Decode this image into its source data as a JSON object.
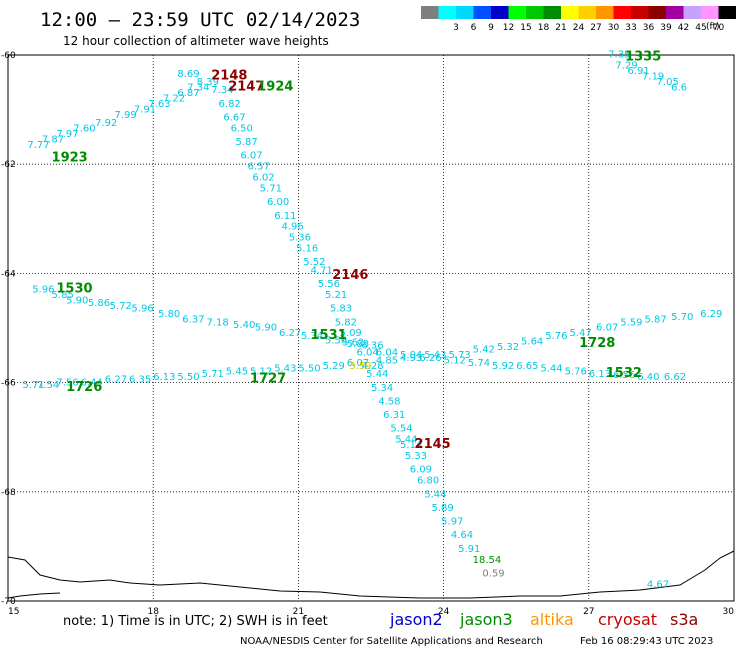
{
  "header": {
    "title": "12:00 – 23:59 UTC 02/14/2023",
    "subtitle": "12 hour collection of altimeter wave heights"
  },
  "legend": {
    "unit": "(ft)",
    "bins": [
      {
        "color": "#7f7f7f",
        "label": ""
      },
      {
        "color": "#00ffff",
        "label": "3"
      },
      {
        "color": "#00d8ff",
        "label": "6"
      },
      {
        "color": "#0050ff",
        "label": "9"
      },
      {
        "color": "#0000c8",
        "label": "12"
      },
      {
        "color": "#00ff00",
        "label": "15"
      },
      {
        "color": "#00c800",
        "label": "18"
      },
      {
        "color": "#008c00",
        "label": "21"
      },
      {
        "color": "#ffff00",
        "label": "24"
      },
      {
        "color": "#ffd000",
        "label": "27"
      },
      {
        "color": "#ff9600",
        "label": "30"
      },
      {
        "color": "#ff0000",
        "label": "33"
      },
      {
        "color": "#c80000",
        "label": "36"
      },
      {
        "color": "#8c0000",
        "label": "39"
      },
      {
        "color": "#a000a0",
        "label": "42"
      },
      {
        "color": "#c8a0ff",
        "label": "45"
      },
      {
        "color": "#ff96ff",
        "label": "70"
      },
      {
        "color": "#000000",
        "label": ""
      }
    ]
  },
  "map": {
    "lon_range": [
      15,
      30
    ],
    "lat_range": [
      -70,
      -60
    ],
    "lon_ticks": [
      "15",
      "18",
      "21",
      "24",
      "27",
      "30"
    ],
    "lat_ticks": [
      "-60",
      "-62",
      "-64",
      "-66",
      "-68",
      "-70"
    ],
    "colors": {
      "cyan": "#00c8e6",
      "green": "#008c00",
      "darkred": "#8c0000",
      "gray": "#7f7f7f",
      "yellow": "#c8c800"
    }
  },
  "tracks": [
    {
      "name": "track-a",
      "color": "cyan",
      "points": [
        {
          "lon": 15.4,
          "lat": -61.7,
          "v": "7.77"
        },
        {
          "lon": 15.7,
          "lat": -61.6,
          "v": "7.87"
        },
        {
          "lon": 16.0,
          "lat": -61.5,
          "v": "7.97"
        },
        {
          "lon": 16.35,
          "lat": -61.4,
          "v": "7.60"
        },
        {
          "lon": 16.8,
          "lat": -61.3,
          "v": "7.92"
        },
        {
          "lon": 17.2,
          "lat": -61.15,
          "v": "7.99"
        },
        {
          "lon": 17.6,
          "lat": -61.05,
          "v": "7.91"
        },
        {
          "lon": 17.9,
          "lat": -60.95,
          "v": "7.63"
        },
        {
          "lon": 18.2,
          "lat": -60.85,
          "v": "7.22"
        },
        {
          "lon": 18.5,
          "lat": -60.75,
          "v": "6.87"
        },
        {
          "lon": 18.7,
          "lat": -60.65,
          "v": "7.34"
        },
        {
          "lon": 18.9,
          "lat": -60.55,
          "v": "8.39"
        },
        {
          "lon": 18.5,
          "lat": -60.4,
          "v": "8.69"
        },
        {
          "lon": 19.2,
          "lat": -60.7,
          "v": "7.34"
        },
        {
          "lon": 19.35,
          "lat": -60.95,
          "v": "6.82"
        },
        {
          "lon": 19.45,
          "lat": -61.2,
          "v": "6.67"
        },
        {
          "lon": 19.6,
          "lat": -61.4,
          "v": "6.50"
        },
        {
          "lon": 19.7,
          "lat": -61.65,
          "v": "5.87"
        },
        {
          "lon": 19.8,
          "lat": -61.9,
          "v": "6.07"
        },
        {
          "lon": 19.95,
          "lat": -62.1,
          "v": "6.57"
        },
        {
          "lon": 20.05,
          "lat": -62.3,
          "v": "6.02"
        },
        {
          "lon": 20.2,
          "lat": -62.5,
          "v": "5.71"
        },
        {
          "lon": 20.35,
          "lat": -62.75,
          "v": "6.00"
        },
        {
          "lon": 20.5,
          "lat": -63.0,
          "v": "6.11"
        },
        {
          "lon": 20.65,
          "lat": -63.2,
          "v": "4.96"
        },
        {
          "lon": 20.8,
          "lat": -63.4,
          "v": "5.36"
        },
        {
          "lon": 20.95,
          "lat": -63.6,
          "v": "5.16"
        },
        {
          "lon": 21.1,
          "lat": -63.85,
          "v": "5.52"
        },
        {
          "lon": 21.25,
          "lat": -64.0,
          "v": "4.71"
        },
        {
          "lon": 21.4,
          "lat": -64.25,
          "v": "5.56"
        },
        {
          "lon": 21.55,
          "lat": -64.45,
          "v": "5.21"
        },
        {
          "lon": 21.65,
          "lat": -64.7,
          "v": "5.83"
        },
        {
          "lon": 21.75,
          "lat": -64.95,
          "v": "5.82"
        },
        {
          "lon": 21.85,
          "lat": -65.15,
          "v": "5.09"
        },
        {
          "lon": 22.0,
          "lat": -65.35,
          "v": "5.88"
        },
        {
          "lon": 22.2,
          "lat": -65.5,
          "v": "6.04"
        },
        {
          "lon": 22.3,
          "lat": -65.75,
          "v": "4.28"
        },
        {
          "lon": 22.4,
          "lat": -65.9,
          "v": "5.44"
        },
        {
          "lon": 22.5,
          "lat": -66.15,
          "v": "5.34"
        },
        {
          "lon": 22.65,
          "lat": -66.4,
          "v": "4.58"
        },
        {
          "lon": 22.75,
          "lat": -66.65,
          "v": "6.31"
        },
        {
          "lon": 22.9,
          "lat": -66.9,
          "v": "5.54"
        },
        {
          "lon": 23.0,
          "lat": -67.1,
          "v": "5.44"
        },
        {
          "lon": 23.1,
          "lat": -67.2,
          "v": "5.14"
        },
        {
          "lon": 23.2,
          "lat": -67.4,
          "v": "5.33"
        },
        {
          "lon": 23.3,
          "lat": -67.65,
          "v": "6.09"
        },
        {
          "lon": 23.45,
          "lat": -67.85,
          "v": "6.80"
        },
        {
          "lon": 23.6,
          "lat": -68.1,
          "v": "5.44"
        },
        {
          "lon": 23.75,
          "lat": -68.35,
          "v": "5.89"
        },
        {
          "lon": 23.95,
          "lat": -68.6,
          "v": "5.97"
        },
        {
          "lon": 24.15,
          "lat": -68.85,
          "v": "4.64"
        },
        {
          "lon": 24.3,
          "lat": -69.1,
          "v": "5.91"
        }
      ]
    },
    {
      "name": "track-b",
      "color": "cyan",
      "points": [
        {
          "lon": 27.4,
          "lat": -60.05,
          "v": "7.35"
        },
        {
          "lon": 27.55,
          "lat": -60.25,
          "v": "7.29"
        },
        {
          "lon": 27.8,
          "lat": -60.35,
          "v": "6.91"
        },
        {
          "lon": 28.1,
          "lat": -60.45,
          "v": "7.19"
        },
        {
          "lon": 28.4,
          "lat": -60.55,
          "v": "7.05"
        },
        {
          "lon": 28.7,
          "lat": -60.65,
          "v": "6.6"
        }
      ]
    },
    {
      "name": "track-c",
      "color": "cyan",
      "points": [
        {
          "lon": 15.5,
          "lat": -64.35,
          "v": "5.96"
        },
        {
          "lon": 15.9,
          "lat": -64.45,
          "v": "5.85"
        },
        {
          "lon": 16.2,
          "lat": -64.55,
          "v": "5.90"
        },
        {
          "lon": 16.65,
          "lat": -64.6,
          "v": "5.86"
        },
        {
          "lon": 17.1,
          "lat": -64.65,
          "v": "5.72"
        },
        {
          "lon": 17.55,
          "lat": -64.7,
          "v": "5.96"
        },
        {
          "lon": 18.1,
          "lat": -64.8,
          "v": "5.80"
        },
        {
          "lon": 18.6,
          "lat": -64.9,
          "v": "6.37"
        },
        {
          "lon": 19.1,
          "lat": -64.95,
          "v": "7.18"
        },
        {
          "lon": 19.65,
          "lat": -65.0,
          "v": "5.40"
        },
        {
          "lon": 20.1,
          "lat": -65.05,
          "v": "5.90"
        },
        {
          "lon": 20.6,
          "lat": -65.15,
          "v": "6.27"
        },
        {
          "lon": 21.05,
          "lat": -65.2,
          "v": "5.34"
        },
        {
          "lon": 21.55,
          "lat": -65.28,
          "v": "5.56"
        },
        {
          "lon": 21.9,
          "lat": -65.32,
          "v": "5.62"
        },
        {
          "lon": 22.3,
          "lat": -65.38,
          "v": "6.36"
        }
      ]
    },
    {
      "name": "track-d",
      "color": "cyan",
      "points": [
        {
          "lon": 22.6,
          "lat": -65.5,
          "v": "6.04"
        },
        {
          "lon": 23.1,
          "lat": -65.55,
          "v": "5.04"
        },
        {
          "lon": 23.6,
          "lat": -65.55,
          "v": "5.43"
        },
        {
          "lon": 24.1,
          "lat": -65.55,
          "v": "5.73"
        },
        {
          "lon": 24.6,
          "lat": -65.45,
          "v": "5.42"
        },
        {
          "lon": 25.1,
          "lat": -65.4,
          "v": "5.32"
        },
        {
          "lon": 25.6,
          "lat": -65.3,
          "v": "5.64"
        },
        {
          "lon": 26.1,
          "lat": -65.2,
          "v": "5.76"
        },
        {
          "lon": 26.6,
          "lat": -65.15,
          "v": "5.47"
        },
        {
          "lon": 27.15,
          "lat": -65.05,
          "v": "6.07"
        },
        {
          "lon": 27.65,
          "lat": -64.95,
          "v": "5.59"
        },
        {
          "lon": 28.15,
          "lat": -64.9,
          "v": "5.87"
        },
        {
          "lon": 28.7,
          "lat": -64.85,
          "v": "5.70"
        },
        {
          "lon": 29.3,
          "lat": -64.8,
          "v": "6.29"
        }
      ]
    },
    {
      "name": "track-e",
      "color": "cyan",
      "points": [
        {
          "lon": 15.3,
          "lat": -66.1,
          "v": "5.71"
        },
        {
          "lon": 15.6,
          "lat": -66.1,
          "v": "7.54"
        },
        {
          "lon": 16.0,
          "lat": -66.05,
          "v": "7.56"
        },
        {
          "lon": 16.5,
          "lat": -66.05,
          "v": "6.44"
        },
        {
          "lon": 17.0,
          "lat": -66.0,
          "v": "6.27"
        },
        {
          "lon": 17.5,
          "lat": -66.0,
          "v": "6.35"
        },
        {
          "lon": 18.0,
          "lat": -65.95,
          "v": "6.13"
        },
        {
          "lon": 18.5,
          "lat": -65.95,
          "v": "5.50"
        },
        {
          "lon": 19.0,
          "lat": -65.9,
          "v": "5.71"
        },
        {
          "lon": 19.5,
          "lat": -65.85,
          "v": "5.45"
        },
        {
          "lon": 20.0,
          "lat": -65.85,
          "v": "5.12"
        },
        {
          "lon": 20.5,
          "lat": -65.8,
          "v": "5.43"
        },
        {
          "lon": 21.0,
          "lat": -65.8,
          "v": "5.50"
        },
        {
          "lon": 21.5,
          "lat": -65.75,
          "v": "5.29"
        },
        {
          "lon": 22.0,
          "lat": -65.7,
          "v": "6.07"
        },
        {
          "lon": 22.6,
          "lat": -65.65,
          "v": "4.85"
        },
        {
          "lon": 23.1,
          "lat": -65.6,
          "v": "4.93"
        },
        {
          "lon": 23.5,
          "lat": -65.6,
          "v": "6.26"
        },
        {
          "lon": 24.0,
          "lat": -65.65,
          "v": "5.12"
        },
        {
          "lon": 24.5,
          "lat": -65.7,
          "v": "5.74"
        },
        {
          "lon": 25.0,
          "lat": -65.75,
          "v": "5.92"
        },
        {
          "lon": 25.5,
          "lat": -65.75,
          "v": "6.65"
        },
        {
          "lon": 26.0,
          "lat": -65.8,
          "v": "5.44"
        },
        {
          "lon": 26.5,
          "lat": -65.85,
          "v": "5.76"
        },
        {
          "lon": 27.0,
          "lat": -65.9,
          "v": "6.13"
        },
        {
          "lon": 27.5,
          "lat": -65.92,
          "v": "6.56"
        },
        {
          "lon": 28.0,
          "lat": -65.95,
          "v": "6.40"
        },
        {
          "lon": 28.55,
          "lat": -65.95,
          "v": "6.62"
        }
      ]
    },
    {
      "name": "track-f",
      "color": "cyan",
      "points": [
        {
          "lon": 28.2,
          "lat": -69.75,
          "v": "4.67"
        }
      ]
    }
  ],
  "extra_values": [
    {
      "lon": 22.05,
      "lat": -65.75,
      "v": "3.59",
      "color": "yellow"
    },
    {
      "lon": 24.8,
      "lat": -69.55,
      "v": "0.59",
      "color": "gray"
    },
    {
      "lon": 24.6,
      "lat": -69.3,
      "v": "18.54",
      "color": "green"
    }
  ],
  "time_labels": [
    {
      "lon": 19.2,
      "lat": -60.45,
      "v": "2148",
      "color": "darkred"
    },
    {
      "lon": 19.55,
      "lat": -60.65,
      "v": "2147",
      "color": "darkred"
    },
    {
      "lon": 20.15,
      "lat": -60.65,
      "v": "1924",
      "color": "green"
    },
    {
      "lon": 15.9,
      "lat": -61.95,
      "v": "1923",
      "color": "green"
    },
    {
      "lon": 27.75,
      "lat": -60.1,
      "v": "1335",
      "color": "green"
    },
    {
      "lon": 21.7,
      "lat": -64.1,
      "v": "2146",
      "color": "darkred"
    },
    {
      "lon": 16.0,
      "lat": -64.35,
      "v": "1530",
      "color": "green"
    },
    {
      "lon": 21.25,
      "lat": -65.2,
      "v": "1531",
      "color": "green"
    },
    {
      "lon": 26.8,
      "lat": -65.35,
      "v": "1728",
      "color": "green"
    },
    {
      "lon": 27.35,
      "lat": -65.9,
      "v": "1532",
      "color": "green"
    },
    {
      "lon": 20.0,
      "lat": -66.0,
      "v": "1727",
      "color": "green"
    },
    {
      "lon": 16.2,
      "lat": -66.15,
      "v": "1726",
      "color": "green"
    },
    {
      "lon": 23.4,
      "lat": -67.2,
      "v": "2145",
      "color": "darkred"
    }
  ],
  "footer": {
    "note": "note:  1) Time is in UTC;  2) SWH is in feet",
    "satellites": [
      {
        "name": "jason2",
        "color": "#0000c8"
      },
      {
        "name": "jason3",
        "color": "#008c00"
      },
      {
        "name": "altika",
        "color": "#ff9600"
      },
      {
        "name": "cryosat",
        "color": "#c80000"
      },
      {
        "name": "s3a",
        "color": "#8c0000"
      }
    ],
    "credit": "NOAA/NESDIS Center for Satellite Applications and Research",
    "timestamp": "Feb 16 08:29:43 UTC 2023"
  }
}
